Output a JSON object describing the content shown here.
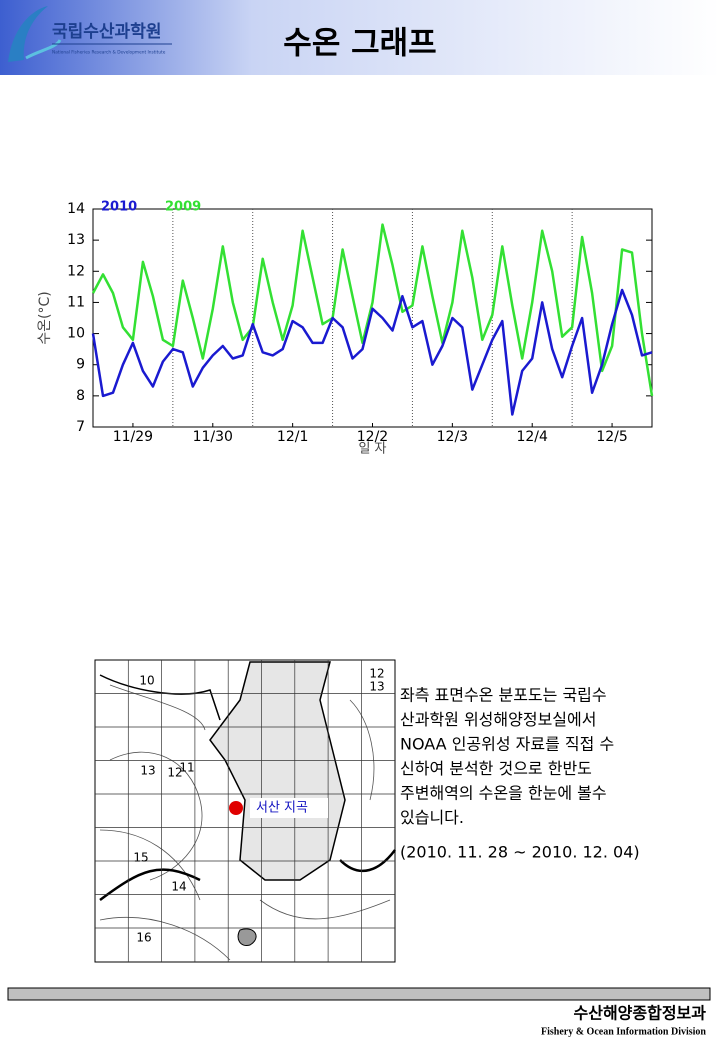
{
  "header": {
    "org": "국립수산과학원",
    "org_en": "National Fisheries Research & Development Institute",
    "title": "수온 그래프"
  },
  "chart_data": {
    "type": "line",
    "ylabel": "수온(°C)",
    "xlabel": "일 자",
    "xlim": [
      0,
      7
    ],
    "ylim": [
      7,
      14
    ],
    "yticks": [
      7,
      8,
      9,
      10,
      11,
      12,
      13,
      14
    ],
    "xticks": [
      {
        "value": 0.5,
        "label": "11/29"
      },
      {
        "value": 1.5,
        "label": "11/30"
      },
      {
        "value": 2.5,
        "label": "12/1"
      },
      {
        "value": 3.5,
        "label": "12/2"
      },
      {
        "value": 4.5,
        "label": "12/3"
      },
      {
        "value": 5.5,
        "label": "12/4"
      },
      {
        "value": 6.5,
        "label": "12/5"
      }
    ],
    "x": [
      0,
      0.125,
      0.25,
      0.375,
      0.5,
      0.625,
      0.75,
      0.875,
      1,
      1.125,
      1.25,
      1.375,
      1.5,
      1.625,
      1.75,
      1.875,
      2,
      2.125,
      2.25,
      2.375,
      2.5,
      2.625,
      2.75,
      2.875,
      3,
      3.125,
      3.25,
      3.375,
      3.5,
      3.625,
      3.75,
      3.875,
      4,
      4.125,
      4.25,
      4.375,
      4.5,
      4.625,
      4.75,
      4.875,
      5,
      5.125,
      5.25,
      5.375,
      5.5,
      5.625,
      5.75,
      5.875,
      6,
      6.125,
      6.25,
      6.375,
      6.5,
      6.625,
      6.75,
      6.875,
      7
    ],
    "series": [
      {
        "name": "2010",
        "color": "#1a1ad0",
        "values": [
          10.0,
          8.0,
          8.1,
          9.0,
          9.7,
          8.8,
          8.3,
          9.1,
          9.5,
          9.4,
          8.3,
          8.9,
          9.3,
          9.6,
          9.2,
          9.3,
          10.3,
          9.4,
          9.3,
          9.5,
          10.4,
          10.2,
          9.7,
          9.7,
          10.5,
          10.2,
          9.2,
          9.5,
          10.8,
          10.5,
          10.1,
          11.2,
          10.2,
          10.4,
          9.0,
          9.6,
          10.5,
          10.2,
          8.2,
          9.0,
          9.8,
          10.4,
          7.4,
          8.8,
          9.2,
          11.0,
          9.5,
          8.6,
          9.6,
          10.5,
          8.1,
          9.0,
          10.3,
          11.4,
          10.6,
          9.3,
          9.4
        ]
      },
      {
        "name": "2009",
        "color": "#33e033",
        "values": [
          11.3,
          11.9,
          11.3,
          10.2,
          9.8,
          12.3,
          11.2,
          9.8,
          9.6,
          11.7,
          10.5,
          9.2,
          10.8,
          12.8,
          11.0,
          9.8,
          10.2,
          12.4,
          11.0,
          9.8,
          10.9,
          13.3,
          11.8,
          10.3,
          10.5,
          12.7,
          11.2,
          9.7,
          11.0,
          13.5,
          12.2,
          10.7,
          10.9,
          12.8,
          11.2,
          9.7,
          11.0,
          13.3,
          11.8,
          9.8,
          10.6,
          12.8,
          10.9,
          9.2,
          11.0,
          13.3,
          12.0,
          9.9,
          10.2,
          13.1,
          11.3,
          8.8,
          9.6,
          12.7,
          12.6,
          10.0,
          8.0
        ]
      }
    ]
  },
  "map": {
    "labels": [
      "10",
      "12",
      "13",
      "13",
      "12",
      "11",
      "15",
      "14",
      "16"
    ],
    "site": "서산 지곡"
  },
  "text": {
    "lines": [
      "좌측 표면수온 분포도는 국립수",
      "산과학원 위성해양정보실에서",
      "NOAA 인공위성 자료를 직접 수",
      "신하여 분석한 것으로  한반도",
      "주변해역의 수온을 한눈에 볼수",
      "있습니다."
    ],
    "period": "(2010. 11. 28 ~ 2010. 12. 04)"
  },
  "footer": {
    "dept": "수산해양종합정보과",
    "dept_en": "Fishery & Ocean Information Division"
  }
}
